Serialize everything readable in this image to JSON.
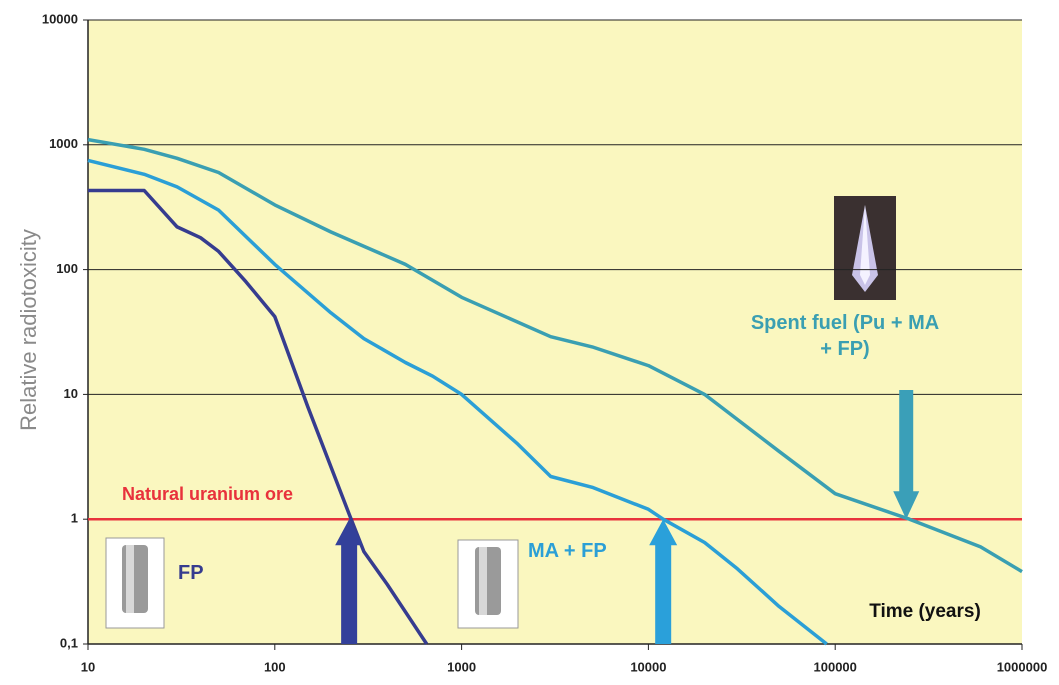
{
  "chart_data": {
    "type": "line",
    "y_label": "Relative radiotoxicity",
    "x_label": "Time (years)",
    "log_x": true,
    "log_y": true,
    "grid": true,
    "xlim": [
      10,
      1000000
    ],
    "xticks": [
      10,
      100,
      1000,
      10000,
      100000,
      1000000
    ],
    "ylim": [
      0.1,
      10000
    ],
    "yticks": [
      {
        "value": 0.1,
        "label": "0,1"
      },
      1,
      10,
      100,
      1000,
      10000
    ],
    "series": [
      {
        "name": "FP",
        "color": "#363c8f",
        "x": [
          10,
          20,
          30,
          40,
          50,
          70,
          100,
          150,
          250,
          300,
          400,
          650
        ],
        "values": [
          430,
          430,
          220,
          180,
          140,
          80,
          42,
          8,
          1.1,
          0.55,
          0.3,
          0.1
        ]
      },
      {
        "name": "MA + FP",
        "color": "#2b9fd6",
        "x": [
          10,
          20,
          30,
          50,
          100,
          200,
          300,
          500,
          700,
          1000,
          2000,
          3000,
          5000,
          10000,
          12000,
          20000,
          30000,
          50000,
          90000
        ],
        "values": [
          750,
          580,
          460,
          300,
          110,
          45,
          28,
          18,
          14,
          10,
          4,
          2.2,
          1.8,
          1.2,
          1.0,
          0.65,
          0.4,
          0.2,
          0.1
        ]
      },
      {
        "name": "Spent fuel (Pu + MA + FP)",
        "color": "#3a9fb2",
        "x": [
          10,
          20,
          30,
          50,
          100,
          200,
          500,
          1000,
          3000,
          5000,
          10000,
          20000,
          50000,
          100000,
          250000,
          600000,
          1000000
        ],
        "values": [
          1100,
          920,
          780,
          600,
          330,
          200,
          110,
          60,
          29,
          24,
          17,
          10,
          3.5,
          1.6,
          1.0,
          0.6,
          0.38
        ]
      }
    ],
    "reference_line": {
      "value": 1,
      "label": "Natural uranium ore",
      "color": "#e8323c"
    },
    "arrows": [
      {
        "x": 250,
        "color": "#33409a"
      },
      {
        "x": 12000,
        "color": "#2aa0da"
      },
      {
        "x": 240000,
        "color": "#3a9fb8"
      }
    ]
  }
}
